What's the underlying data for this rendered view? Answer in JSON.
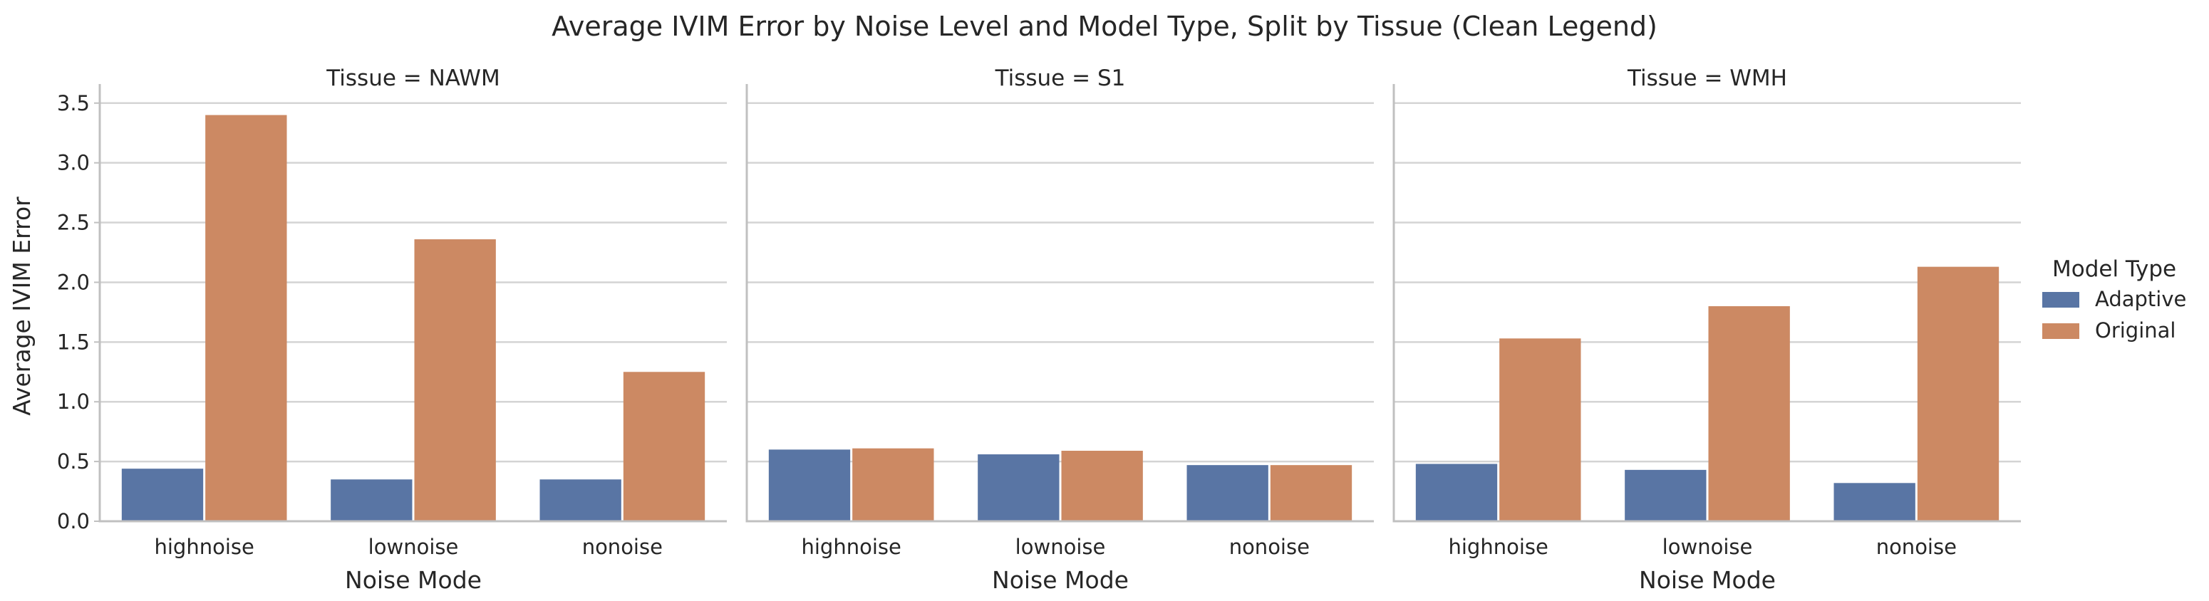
{
  "chart_data": {
    "type": "bar",
    "title": "Average IVIM Error by Noise Level and Model Type, Split by Tissue (Clean Legend)",
    "xlabel": "Noise Mode",
    "ylabel": "Average IVIM Error",
    "ylim": [
      0,
      3.6
    ],
    "yticks": [
      "0.0",
      "0.5",
      "1.0",
      "1.5",
      "2.0",
      "2.5",
      "3.0",
      "3.5"
    ],
    "grid": true,
    "categories": [
      "highnoise",
      "lownoise",
      "nonoise"
    ],
    "legend": {
      "title": "Model Type",
      "placement": "right",
      "entries": [
        {
          "name": "Adaptive",
          "color": "#5975a4"
        },
        {
          "name": "Original",
          "color": "#cc8963"
        }
      ]
    },
    "facets": [
      {
        "title": "Tissue = NAWM",
        "series": [
          {
            "name": "Adaptive",
            "values": [
              0.44,
              0.35,
              0.35
            ]
          },
          {
            "name": "Original",
            "values": [
              3.4,
              2.36,
              1.25
            ]
          }
        ]
      },
      {
        "title": "Tissue = S1",
        "series": [
          {
            "name": "Adaptive",
            "values": [
              0.6,
              0.56,
              0.47
            ]
          },
          {
            "name": "Original",
            "values": [
              0.61,
              0.59,
              0.47
            ]
          }
        ]
      },
      {
        "title": "Tissue = WMH",
        "series": [
          {
            "name": "Adaptive",
            "values": [
              0.48,
              0.43,
              0.32
            ]
          },
          {
            "name": "Original",
            "values": [
              1.53,
              1.8,
              2.13
            ]
          }
        ]
      }
    ]
  }
}
